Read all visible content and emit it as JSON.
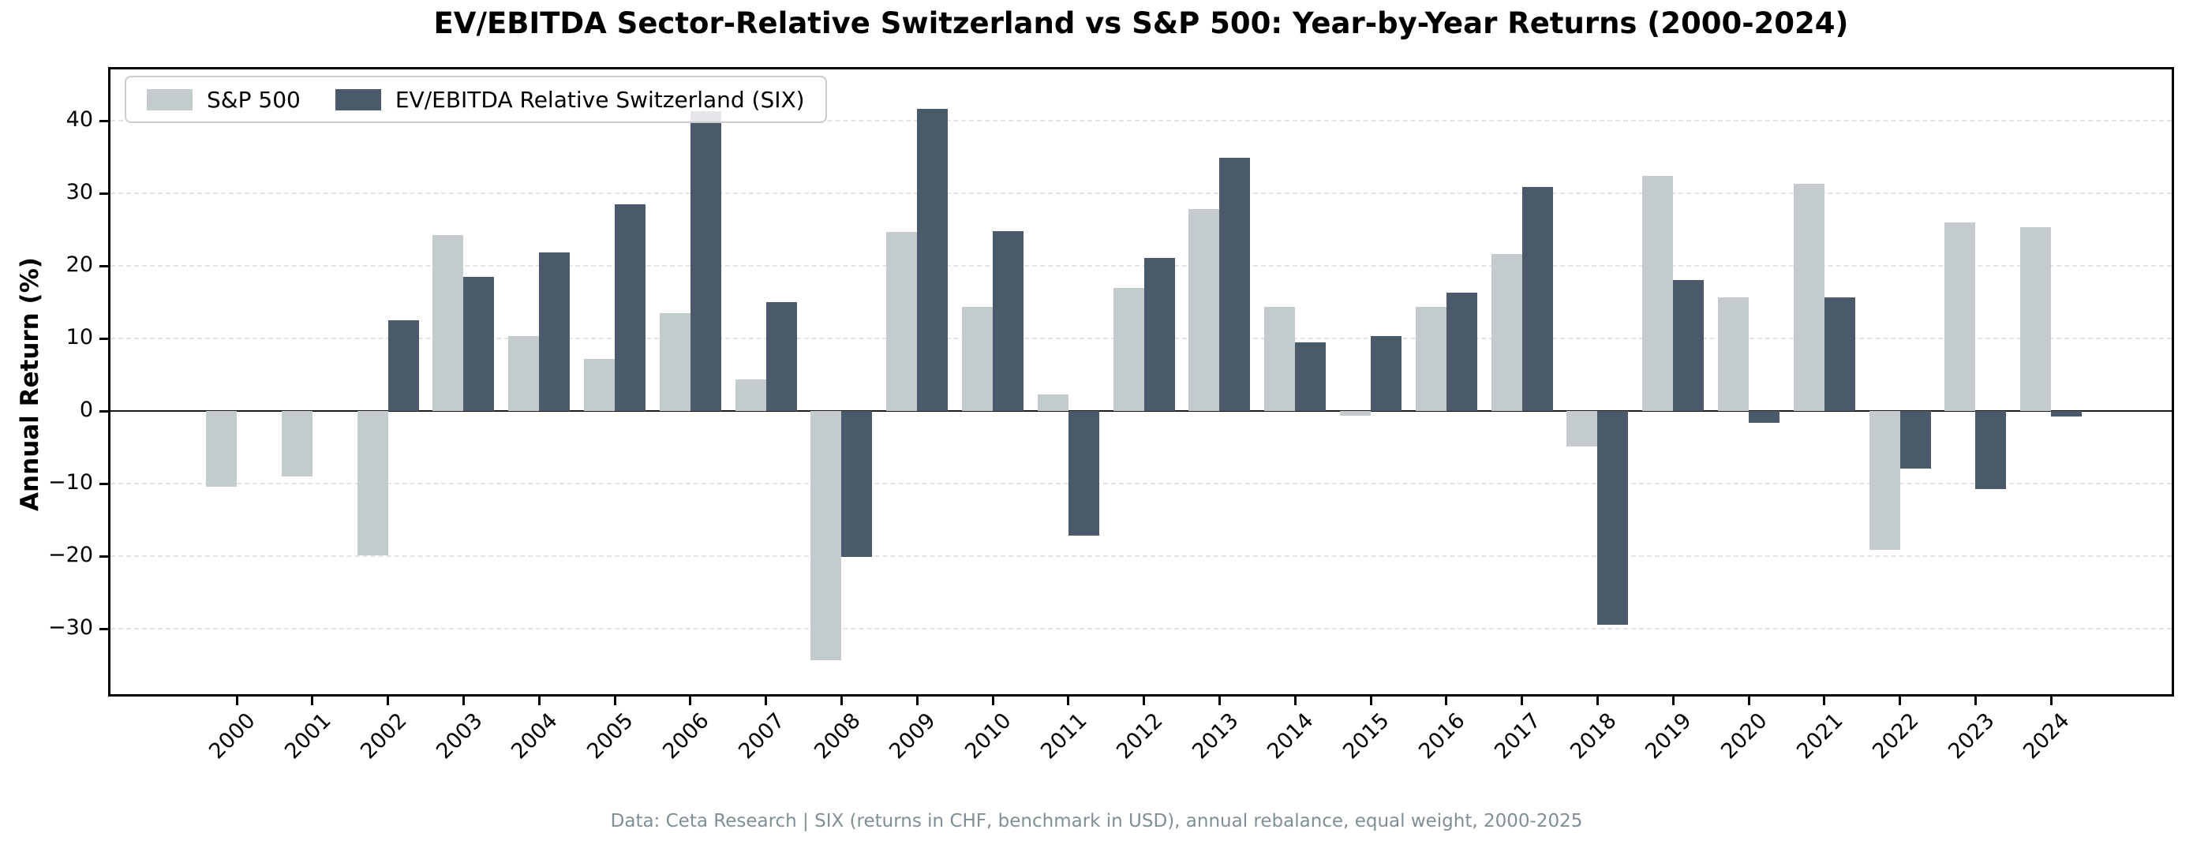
{
  "title": "EV/EBITDA Sector-Relative Switzerland vs S&P 500: Year-by-Year Returns (2000-2024)",
  "footer": "Data: Ceta Research | SIX (returns in CHF, benchmark in USD), annual rebalance, equal weight, 2000-2025",
  "y_axis": {
    "label": "Annual Return (%)",
    "tick_labels": [
      "40",
      "30",
      "20",
      "10",
      "0",
      "−10",
      "−20",
      "−30"
    ]
  },
  "legend": {
    "items": [
      {
        "label": "S&P 500",
        "color": "#c3cbcc"
      },
      {
        "label": "EV/EBITDA Relative Switzerland (SIX)",
        "color": "#4a5a6a"
      }
    ]
  },
  "chart_data": {
    "type": "bar",
    "title": "EV/EBITDA Sector-Relative Switzerland vs S&P 500: Year-by-Year Returns (2000-2024)",
    "xlabel": "",
    "ylabel": "Annual Return (%)",
    "categories": [
      "2000",
      "2001",
      "2002",
      "2003",
      "2004",
      "2005",
      "2006",
      "2007",
      "2008",
      "2009",
      "2010",
      "2011",
      "2012",
      "2013",
      "2014",
      "2015",
      "2016",
      "2017",
      "2018",
      "2019",
      "2020",
      "2021",
      "2022",
      "2023",
      "2024"
    ],
    "series": [
      {
        "name": "S&P 500",
        "color": "#c3cbcc",
        "values": [
          -10.4,
          -9.0,
          -19.9,
          24.2,
          10.3,
          7.2,
          13.5,
          4.3,
          -34.3,
          24.7,
          14.4,
          2.3,
          17.0,
          27.8,
          14.4,
          -0.6,
          14.4,
          21.6,
          -4.9,
          32.4,
          15.6,
          31.3,
          -19.1,
          26.0,
          25.3
        ]
      },
      {
        "name": "EV/EBITDA Relative Switzerland (SIX)",
        "color": "#4a5a6a",
        "values": [
          0.0,
          0.0,
          12.5,
          18.5,
          21.9,
          28.5,
          41.3,
          15.0,
          -20.1,
          41.6,
          24.8,
          -17.2,
          21.1,
          34.9,
          9.5,
          10.3,
          16.3,
          30.9,
          -29.5,
          18.0,
          -1.6,
          15.6,
          -7.9,
          -10.8,
          -0.8
        ]
      }
    ],
    "yticks": [
      40,
      30,
      20,
      10,
      0,
      -10,
      -20,
      -30
    ],
    "ylim": [
      -39,
      47
    ],
    "grid": "horizontal-dashed",
    "zero_line": true,
    "legend_position": "upper-left",
    "x_tick_rotation": 45
  }
}
